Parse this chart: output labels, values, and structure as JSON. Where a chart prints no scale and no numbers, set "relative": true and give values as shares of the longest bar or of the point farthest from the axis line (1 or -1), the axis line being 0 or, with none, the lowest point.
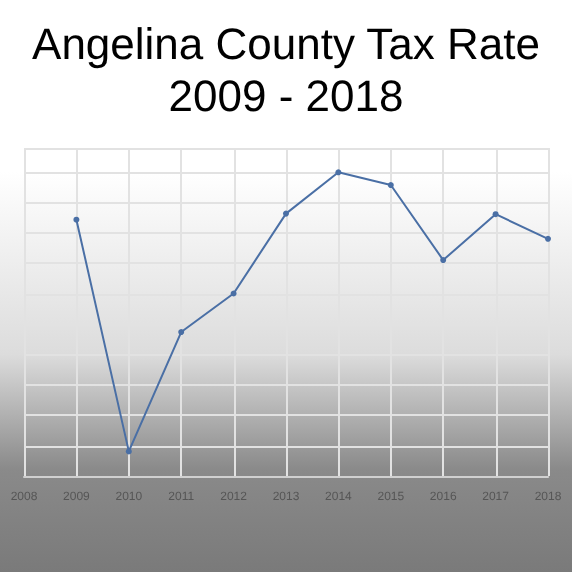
{
  "chart_data": {
    "type": "line",
    "title": "Angelina County Tax Rate\n2009 - 2018",
    "relative": true,
    "x": [
      2009,
      2010,
      2011,
      2012,
      2013,
      2014,
      2015,
      2016,
      2017,
      2018
    ],
    "values": [
      0.844,
      0.081,
      0.474,
      0.601,
      0.864,
      1,
      0.958,
      0.711,
      0.862,
      0.781
    ],
    "color": "#4a6fa5",
    "xlim": [
      2008,
      2018
    ],
    "xticks": [
      2008,
      2009,
      2010,
      2011,
      2012,
      2013,
      2014,
      2015,
      2016,
      2017,
      2018
    ],
    "grid": true,
    "marker": "circle",
    "line_style": "solid"
  }
}
